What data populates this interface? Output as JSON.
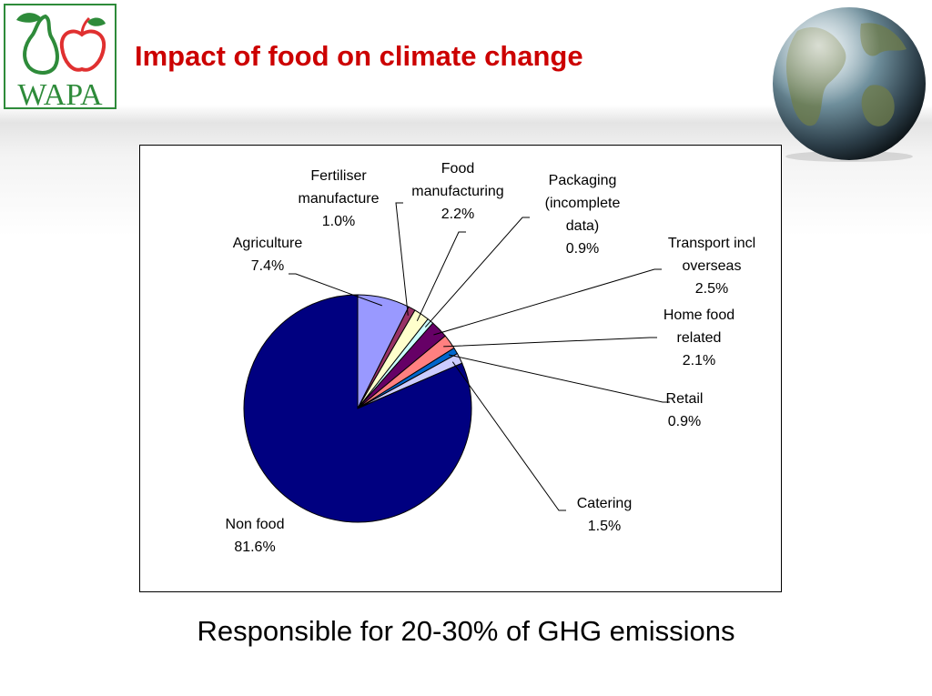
{
  "header": {
    "title": "Impact of food on climate change",
    "logo_text": "WAPA"
  },
  "footer": {
    "subtitle": "Responsible for 20-30% of GHG emissions"
  },
  "colors": {
    "title": "#cc0000",
    "logo": "#2e8b3a"
  },
  "chart_data": {
    "type": "pie",
    "slices": [
      {
        "label": [
          "Agriculture",
          "7.4%"
        ],
        "value": 7.4,
        "color": "#9999ff"
      },
      {
        "label": [
          "Fertiliser",
          "manufacture",
          "1.0%"
        ],
        "value": 1.0,
        "color": "#993366"
      },
      {
        "label": [
          "Food",
          "manufacturing",
          "2.2%"
        ],
        "value": 2.2,
        "color": "#ffffcc"
      },
      {
        "label": [
          "Packaging",
          "(incomplete",
          "data)",
          "0.9%"
        ],
        "value": 0.9,
        "color": "#ccffff"
      },
      {
        "label": [
          "Transport incl",
          "overseas",
          "2.5%"
        ],
        "value": 2.5,
        "color": "#660066"
      },
      {
        "label": [
          "Home food",
          "related",
          "2.1%"
        ],
        "value": 2.1,
        "color": "#ff8080"
      },
      {
        "label": [
          "Retail",
          "0.9%"
        ],
        "value": 0.9,
        "color": "#0066cc"
      },
      {
        "label": [
          "Catering",
          "1.5%"
        ],
        "value": 1.5,
        "color": "#ccccff"
      },
      {
        "label": [
          "Non food",
          "81.6%"
        ],
        "value": 81.6,
        "color": "#000080"
      }
    ],
    "start_angle_deg": 0,
    "direction": "clockwise",
    "legend": "none"
  }
}
